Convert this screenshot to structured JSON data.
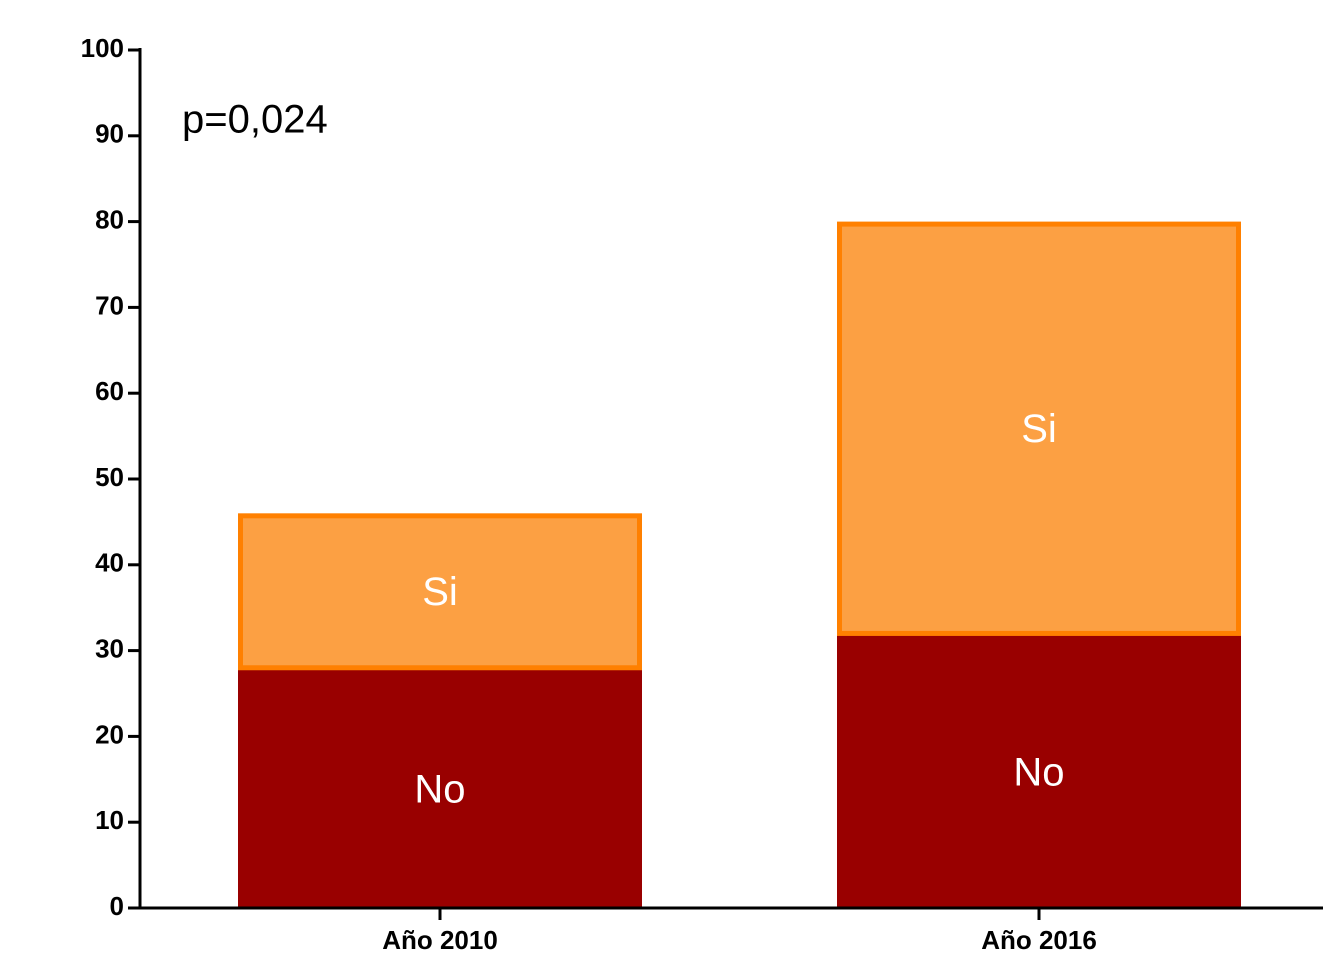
{
  "chart_data": {
    "type": "stacked_bar",
    "annotation": "p=0,024",
    "categories": [
      "Año 2010",
      "Año 2016"
    ],
    "series": [
      {
        "name": "No",
        "color": "#990000",
        "values": [
          28,
          32
        ]
      },
      {
        "name": "Si",
        "color": "#fca043",
        "edge_color": "#ff8000",
        "values": [
          18,
          48
        ]
      }
    ],
    "ylim": [
      0,
      100
    ],
    "yticks": [
      0,
      10,
      20,
      30,
      40,
      50,
      60,
      70,
      80,
      90,
      100
    ],
    "grid": false
  }
}
